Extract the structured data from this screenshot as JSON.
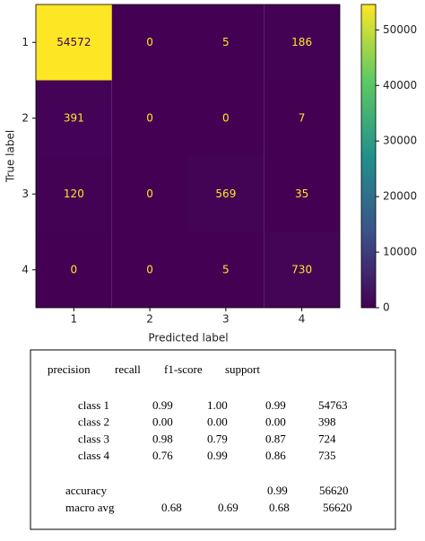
{
  "chart_data": {
    "type": "heatmap",
    "colormap": "viridis",
    "x_label": "Predicted label",
    "y_label": "True label",
    "x_categories": [
      "1",
      "2",
      "3",
      "4"
    ],
    "y_categories": [
      "1",
      "2",
      "3",
      "4"
    ],
    "values": [
      [
        54572,
        0,
        5,
        186
      ],
      [
        391,
        0,
        0,
        7
      ],
      [
        120,
        0,
        569,
        35
      ],
      [
        0,
        0,
        5,
        730
      ]
    ],
    "clim": [
      0,
      54572
    ],
    "cticks": [
      0,
      10000,
      20000,
      30000,
      40000,
      50000
    ]
  },
  "table": {
    "header": [
      "precision",
      "recall",
      "f1-score",
      "support"
    ],
    "rows": [
      [
        "class 1",
        "0.99",
        "1.00",
        "0.99",
        "54763"
      ],
      [
        "class 2",
        "0.00",
        "0.00",
        "0.00",
        "398"
      ],
      [
        "class 3",
        "0.98",
        "0.79",
        "0.87",
        "724"
      ],
      [
        "class 4",
        "0.76",
        "0.99",
        "0.86",
        "735"
      ]
    ],
    "accuracy": [
      "accuracy",
      "0.99",
      "56620"
    ],
    "macro_avg": [
      "macro avg",
      "0.68",
      "0.69",
      "0.68",
      "56620"
    ]
  }
}
